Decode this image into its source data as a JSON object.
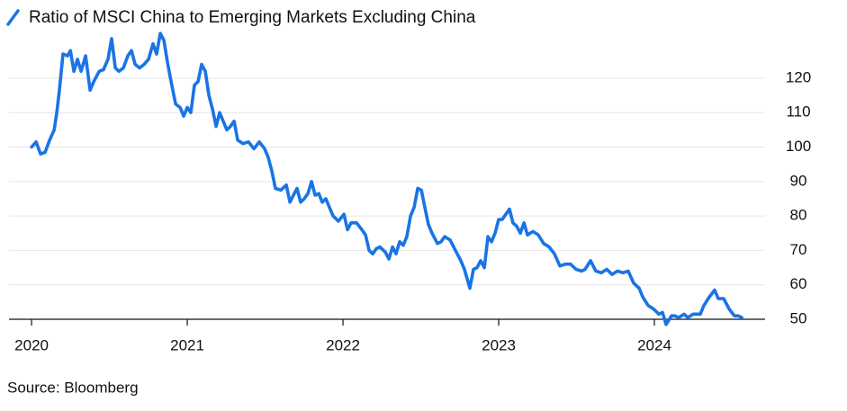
{
  "chart_data": {
    "type": "line",
    "title": "Ratio of MSCI China to Emerging Markets Excluding China",
    "source": "Source: Bloomberg",
    "xlim": [
      2019.855,
      2024.711
    ],
    "xticks": [
      2020,
      2021,
      2022,
      2023,
      2024
    ],
    "ylim": [
      47,
      135
    ],
    "yticks": [
      50,
      60,
      70,
      80,
      90,
      100,
      110,
      120
    ],
    "grid": true,
    "x": [
      2020.0,
      2020.029,
      2020.058,
      2020.087,
      2020.116,
      2020.145,
      2020.162,
      2020.179,
      2020.202,
      2020.231,
      2020.249,
      2020.272,
      2020.295,
      2020.318,
      2020.347,
      2020.376,
      2020.399,
      2020.434,
      2020.462,
      2020.491,
      2020.514,
      2020.538,
      2020.561,
      2020.59,
      2020.618,
      2020.642,
      2020.665,
      2020.694,
      2020.723,
      2020.751,
      2020.78,
      2020.803,
      2020.827,
      2020.85,
      2020.873,
      2020.896,
      2020.925,
      2020.954,
      2020.977,
      2021.0,
      2021.023,
      2021.046,
      2021.069,
      2021.092,
      2021.116,
      2021.139,
      2021.162,
      2021.185,
      2021.208,
      2021.231,
      2021.254,
      2021.277,
      2021.301,
      2021.324,
      2021.358,
      2021.393,
      2021.428,
      2021.462,
      2021.497,
      2021.52,
      2021.543,
      2021.566,
      2021.601,
      2021.636,
      2021.659,
      2021.682,
      2021.705,
      2021.728,
      2021.751,
      2021.775,
      2021.798,
      2021.821,
      2021.844,
      2021.867,
      2021.89,
      2021.913,
      2021.936,
      2021.971,
      2022.006,
      2022.029,
      2022.052,
      2022.087,
      2022.121,
      2022.145,
      2022.168,
      2022.191,
      2022.214,
      2022.237,
      2022.272,
      2022.295,
      2022.318,
      2022.341,
      2022.364,
      2022.387,
      2022.41,
      2022.434,
      2022.457,
      2022.48,
      2022.503,
      2022.526,
      2022.549,
      2022.572,
      2022.607,
      2022.63,
      2022.653,
      2022.688,
      2022.711,
      2022.734,
      2022.757,
      2022.78,
      2022.815,
      2022.838,
      2022.861,
      2022.884,
      2022.908,
      2022.931,
      2022.954,
      2022.977,
      2023.0,
      2023.023,
      2023.046,
      2023.069,
      2023.092,
      2023.116,
      2023.139,
      2023.162,
      2023.185,
      2023.22,
      2023.254,
      2023.289,
      2023.324,
      2023.358,
      2023.393,
      2023.428,
      2023.462,
      2023.497,
      2023.532,
      2023.555,
      2023.59,
      2023.624,
      2023.659,
      2023.694,
      2023.728,
      2023.763,
      2023.798,
      2023.832,
      2023.867,
      2023.902,
      2023.925,
      2023.96,
      2023.994,
      2024.029,
      2024.052,
      2024.075,
      2024.11,
      2024.133,
      2024.156,
      2024.191,
      2024.214,
      2024.249,
      2024.295,
      2024.318,
      2024.353,
      2024.387,
      2024.41,
      2024.445,
      2024.48,
      2024.514,
      2024.538,
      2024.561
    ],
    "series": [
      {
        "color": "#1a74e4",
        "values": [
          100,
          101.5,
          98,
          98.5,
          102,
          105,
          110,
          116.5,
          127,
          126.5,
          128,
          122,
          125.5,
          122,
          126.5,
          116.5,
          119,
          122,
          122.5,
          125.5,
          131.5,
          123,
          122,
          123,
          126.5,
          128,
          124,
          123,
          124,
          125.5,
          130,
          127,
          133,
          131,
          124.5,
          119,
          112.5,
          111.5,
          109,
          111.5,
          110,
          118,
          119,
          124,
          122,
          115,
          111,
          106,
          110,
          107.5,
          105,
          106,
          107.5,
          102,
          101,
          101.5,
          99.5,
          101.5,
          99.5,
          97,
          93,
          88,
          87.5,
          89,
          84,
          86,
          88,
          84,
          85,
          86.5,
          90,
          86,
          86.5,
          84,
          85,
          82.5,
          80,
          78.5,
          80.5,
          76,
          78,
          78,
          76,
          74.5,
          70,
          69,
          70.5,
          71,
          69.5,
          67.5,
          71,
          69,
          72.5,
          71.5,
          74,
          80,
          82.5,
          88,
          87.5,
          82.5,
          77.5,
          75,
          72,
          72.5,
          74,
          73,
          71,
          69,
          67,
          64.5,
          59,
          64.5,
          65,
          67,
          65,
          74,
          72.5,
          75,
          79,
          79,
          80.5,
          82,
          78,
          77,
          75,
          78,
          74.5,
          75.5,
          74.5,
          72,
          71,
          69,
          65.5,
          66,
          66,
          64.5,
          64,
          64.5,
          67,
          64,
          63.5,
          64.5,
          63,
          64,
          63.5,
          64,
          60.5,
          59,
          56.5,
          54,
          53,
          51.5,
          52,
          48.5,
          51,
          51,
          50.5,
          51.5,
          50.5,
          51.5,
          51.5,
          54,
          56.5,
          58.5,
          56,
          56,
          53,
          51,
          51,
          50.5
        ]
      }
    ]
  }
}
